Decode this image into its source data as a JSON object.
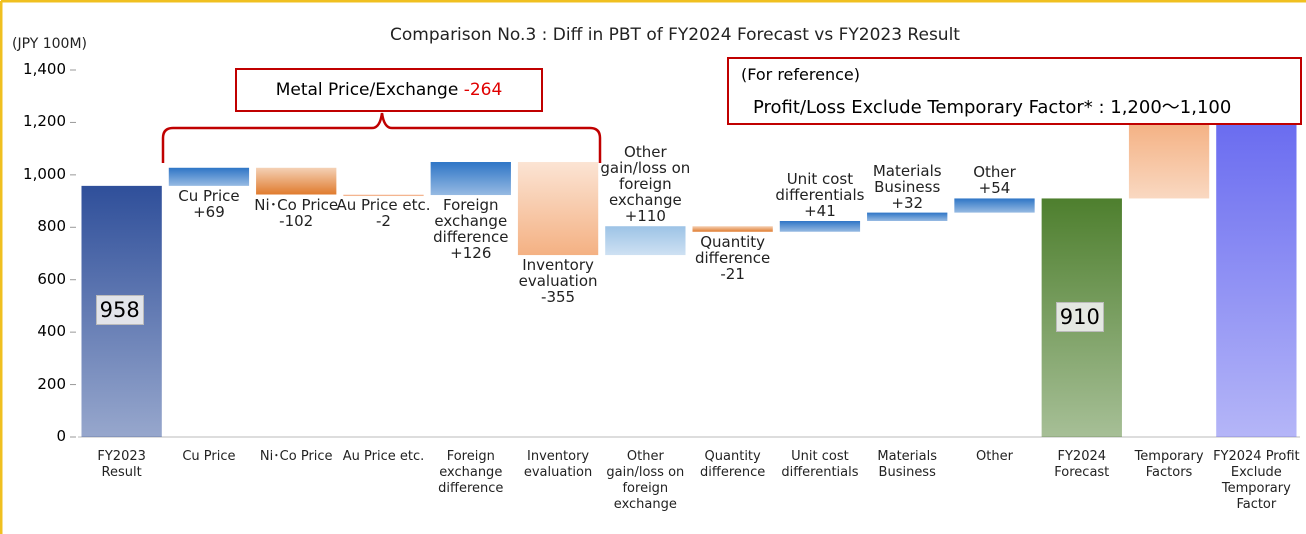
{
  "chart_data": {
    "type": "waterfall",
    "title": "Comparison No.3 : Diff in PBT of FY2024 Forecast  vs FY2023 Result",
    "unit_label": "(JPY 100M)",
    "categories": [
      "FY2023 Result",
      "Cu Price",
      "Ni･Co Price",
      "Au Price etc.",
      "Foreign exchange difference",
      "Inventory evaluation",
      "Other gain/loss on foreign exchange",
      "Quantity difference",
      "Unit cost differentials",
      "Materials Business",
      "Other",
      "FY2024 Forecast",
      "Temporary Factors",
      "FY2024 Profit Exclude Temporary Factor"
    ],
    "values": [
      958,
      69,
      -102,
      -2,
      126,
      -355,
      110,
      -21,
      41,
      32,
      54,
      910,
      290,
      1200
    ],
    "value_labels": [
      "958",
      "+69",
      "-102",
      "-2",
      "+126",
      "-355",
      "+110",
      "-21",
      "+41",
      "+32",
      "+54",
      "910",
      null,
      null
    ],
    "measure": [
      "absolute",
      "relative",
      "relative",
      "relative",
      "relative",
      "relative",
      "relative",
      "relative",
      "relative",
      "relative",
      "relative",
      "absolute",
      "relative",
      "absolute"
    ],
    "colors": [
      "#2f4f9a",
      "#2e75c6",
      "#e07b2e",
      "#f0a070",
      "#2e75c6",
      "#f4b183",
      "#9dc3e6",
      "#e07b2e",
      "#2e75c6",
      "#2e75c6",
      "#2e75c6",
      "#4e7f2e",
      "#f4b183",
      "#6a6cf0"
    ],
    "ylim": [
      0,
      1400
    ],
    "yticks": [
      0,
      200,
      400,
      600,
      800,
      {
        "value": 1000,
        "label": "1,000"
      },
      {
        "value": 1200,
        "label": "1,200"
      },
      {
        "value": 1400,
        "label": "1,400"
      }
    ],
    "annotations": {
      "group_label": "Metal Price/Exchange",
      "group_value": "-264",
      "reference_title": "(For reference)",
      "reference_text": "Profit/Loss Exclude Temporary Factor* : 1,200～1,100"
    }
  }
}
